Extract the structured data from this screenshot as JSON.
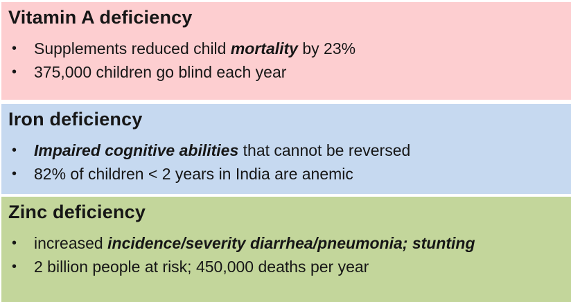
{
  "bullet_char": "•",
  "colors": {
    "vitamin_a_bg": "#fdced0",
    "iron_bg": "#c6d9f0",
    "zinc_bg": "#c3d69b",
    "text": "#161616"
  },
  "boxes": [
    {
      "title": "Vitamin A deficiency",
      "bullets": [
        {
          "segments": [
            {
              "text": "Supplements reduced child ",
              "emphasis": false
            },
            {
              "text": "mortality",
              "emphasis": true
            },
            {
              "text": " by 23%",
              "emphasis": false
            }
          ]
        },
        {
          "segments": [
            {
              "text": "375,000 children go blind each year",
              "emphasis": false
            }
          ]
        }
      ]
    },
    {
      "title": "Iron deficiency",
      "bullets": [
        {
          "segments": [
            {
              "text": "Impaired cognitive abilities",
              "emphasis": true
            },
            {
              "text": " that cannot be reversed",
              "emphasis": false
            }
          ]
        },
        {
          "segments": [
            {
              "text": "82% of children < 2 years in India are anemic",
              "emphasis": false
            }
          ]
        }
      ]
    },
    {
      "title": "Zinc deficiency",
      "bullets": [
        {
          "segments": [
            {
              "text": "increased ",
              "emphasis": false
            },
            {
              "text": "incidence/severity diarrhea/pneumonia; stunting",
              "emphasis": true
            }
          ]
        },
        {
          "segments": [
            {
              "text": "2 billion people at risk; 450,000 deaths per year",
              "emphasis": false
            }
          ]
        }
      ]
    }
  ]
}
